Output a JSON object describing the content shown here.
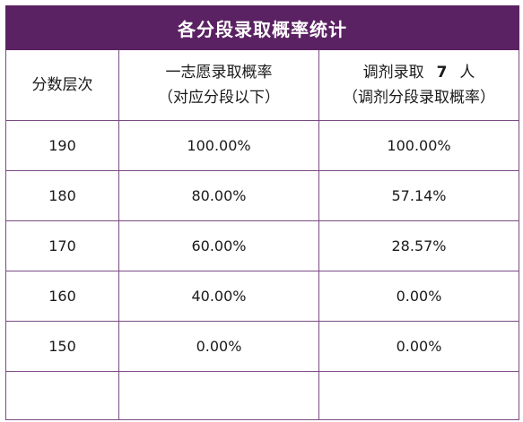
{
  "title": "各分段录取概率统计",
  "headers": {
    "col1": "分数层次",
    "col2_line1": "一志愿录取概率",
    "col2_line2": "（对应分段以下）",
    "col3_line1_prefix": "调剂录取",
    "col3_line1_number": "7",
    "col3_line1_suffix": "人",
    "col3_line2": "（调剂分段录取概率）"
  },
  "rows": [
    {
      "score": "190",
      "first_choice": "100.00%",
      "adjusted": "100.00%"
    },
    {
      "score": "180",
      "first_choice": "80.00%",
      "adjusted": "57.14%"
    },
    {
      "score": "170",
      "first_choice": "60.00%",
      "adjusted": "28.57%"
    },
    {
      "score": "160",
      "first_choice": "40.00%",
      "adjusted": "0.00%"
    },
    {
      "score": "150",
      "first_choice": "0.00%",
      "adjusted": "0.00%"
    },
    {
      "score": "",
      "first_choice": "",
      "adjusted": ""
    }
  ],
  "colors": {
    "title_bg": "#5b2263",
    "border": "#7b4b84"
  }
}
